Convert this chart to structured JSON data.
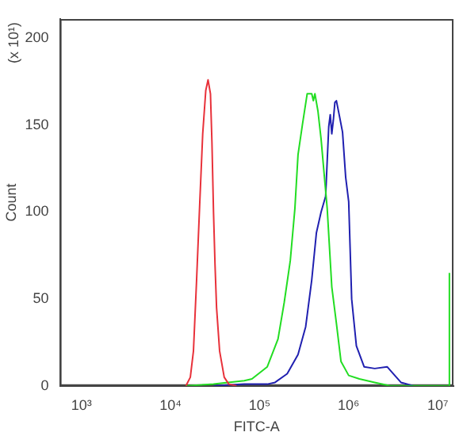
{
  "chart_data": {
    "type": "line",
    "xlabel": "FITC-A",
    "ylabel": "Count",
    "annotations": [
      "(x 10¹)"
    ],
    "log": "x",
    "grid": false,
    "legend": false,
    "marker": "none",
    "line_style": "solid",
    "xlim": [
      575,
      15000000
    ],
    "xticks": [
      {
        "value": 1000,
        "label": "10³"
      },
      {
        "value": 10000,
        "label": "10⁴"
      },
      {
        "value": 100000,
        "label": "10⁵"
      },
      {
        "value": 1000000,
        "label": "10⁶"
      },
      {
        "value": 10000000,
        "label": "10⁷"
      }
    ],
    "ylim": [
      0,
      211
    ],
    "yticks": [
      0,
      50,
      100,
      150,
      200
    ],
    "series": [
      {
        "color": "#e8313a",
        "x": [
          14900,
          16700,
          18100,
          19600,
          21300,
          23000,
          24900,
          26400,
          28100,
          29200,
          30400,
          31600,
          32900,
          35600,
          40100,
          45200,
          55100
        ],
        "values": [
          0,
          5,
          20,
          60,
          105,
          145,
          170,
          176,
          168,
          140,
          100,
          70,
          45,
          20,
          5,
          1,
          0
        ]
      },
      {
        "color": "#22dd22",
        "x": [
          14900,
          30400,
          67300,
          82000,
          122000,
          161000,
          189000,
          221000,
          249000,
          270000,
          304000,
          342000,
          385000,
          401000,
          418000,
          452000,
          490000,
          530000,
          574000,
          646000,
          728000,
          820000,
          1000000,
          1320000,
          1960000,
          2920000,
          13400000,
          13500000
        ],
        "values": [
          0,
          1,
          3,
          4,
          11,
          27,
          48,
          72,
          102,
          133,
          151,
          168,
          168,
          164,
          168,
          158,
          142,
          122,
          102,
          57,
          36,
          14,
          6,
          4,
          2,
          0,
          0,
          65
        ]
      },
      {
        "color": "#2020b0",
        "x": [
          30400,
          67300,
          122000,
          149000,
          204000,
          270000,
          329000,
          385000,
          434000,
          490000,
          551000,
          597000,
          621000,
          646000,
          673000,
          700000,
          728000,
          789000,
          853000,
          925000,
          1000000,
          1080000,
          1220000,
          1490000,
          1960000,
          2700000,
          3160000,
          3860000,
          5300000
        ],
        "values": [
          0,
          1,
          1,
          2,
          7,
          18,
          34,
          61,
          88,
          100,
          109,
          149,
          156,
          145,
          153,
          163,
          164,
          155,
          146,
          120,
          106,
          50,
          23,
          11,
          10,
          11,
          7,
          2,
          0
        ]
      }
    ]
  }
}
